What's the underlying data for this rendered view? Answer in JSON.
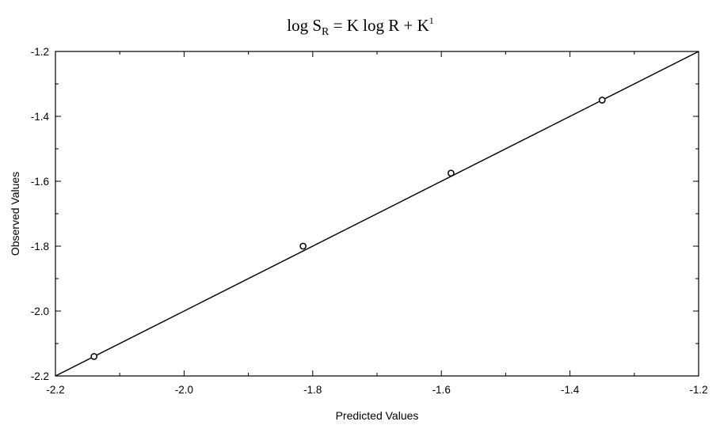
{
  "chart_data": {
    "type": "scatter",
    "title_parts": {
      "lead": "log S",
      "lead_sub": "R",
      "middle": " = K log R + K",
      "tail_sup": "1"
    },
    "xlabel": "Predicted Values",
    "ylabel": "Observed Values",
    "xlim": [
      -2.2,
      -1.2
    ],
    "ylim": [
      -2.2,
      -1.2
    ],
    "x_ticks": [
      "-2.2",
      "-2.0",
      "-1.8",
      "-1.6",
      "-1.4",
      "-1.2"
    ],
    "y_ticks": [
      "-1.2",
      "-1.4",
      "-1.6",
      "-1.8",
      "-2.0",
      "-2.2"
    ],
    "x_tick_values": [
      -2.2,
      -2.0,
      -1.8,
      -1.6,
      -1.4,
      -1.2
    ],
    "y_tick_values": [
      -1.2,
      -1.4,
      -1.6,
      -1.8,
      -2.0,
      -2.2
    ],
    "grid": false,
    "points": [
      {
        "x": -2.14,
        "y": -2.14
      },
      {
        "x": -1.815,
        "y": -1.8
      },
      {
        "x": -1.585,
        "y": -1.575
      },
      {
        "x": -1.35,
        "y": -1.35
      }
    ],
    "fit_line": {
      "x": [
        -2.2,
        -1.2
      ],
      "y": [
        -2.2,
        -1.2
      ]
    },
    "colors": {
      "points": "#000000",
      "line": "#000000",
      "axes": "#000000"
    }
  }
}
